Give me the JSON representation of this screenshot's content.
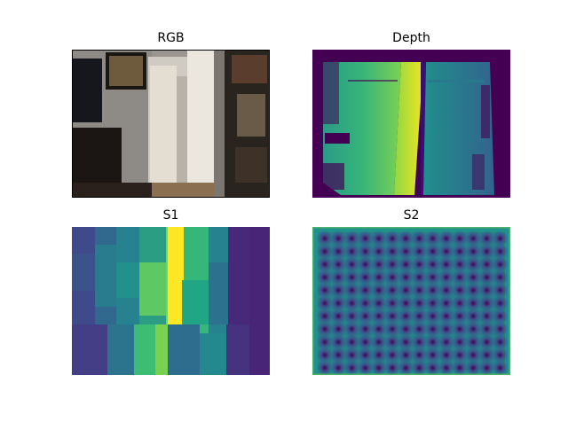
{
  "figure": {
    "panels": [
      {
        "id": "rgb",
        "title": "RGB"
      },
      {
        "id": "depth",
        "title": "Depth"
      },
      {
        "id": "s1",
        "title": "S1"
      },
      {
        "id": "s2",
        "title": "S2"
      }
    ],
    "colormap": "viridis",
    "colors": {
      "viridis_dark": "#440154",
      "viridis_blue": "#3b528b",
      "viridis_teal": "#21918c",
      "viridis_green": "#5ec962",
      "viridis_yellow": "#fde725"
    }
  }
}
